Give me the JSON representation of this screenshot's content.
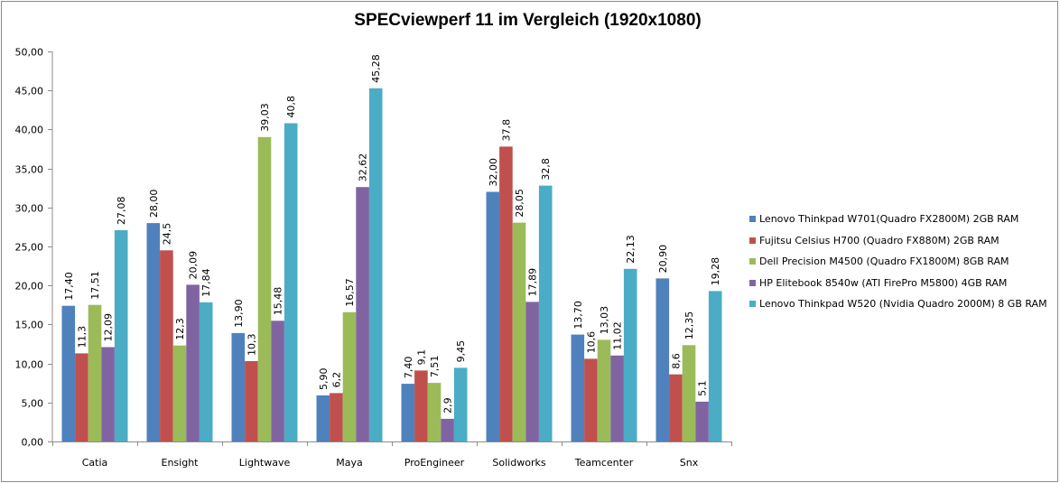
{
  "chart_data": {
    "type": "bar",
    "title": "SPECviewperf 11 im Vergleich (1920x1080)",
    "xlabel": "",
    "ylabel": "",
    "ylim": [
      0,
      50
    ],
    "yticks": [
      "0,00",
      "5,00",
      "10,00",
      "15,00",
      "20,00",
      "25,00",
      "30,00",
      "35,00",
      "40,00",
      "45,00",
      "50,00"
    ],
    "ytick_values": [
      0,
      5,
      10,
      15,
      20,
      25,
      30,
      35,
      40,
      45,
      50
    ],
    "grid": false,
    "legend_position": "right",
    "categories": [
      "Catia",
      "Ensight",
      "Lightwave",
      "Maya",
      "ProEngineer",
      "Solidworks",
      "Teamcenter",
      "Snx"
    ],
    "series": [
      {
        "name": "Lenovo Thinkpad W701(Quadro FX2800M) 2GB RAM",
        "color": "#4f81bd",
        "values": [
          17.4,
          28.0,
          13.9,
          5.9,
          7.4,
          32.0,
          13.7,
          20.9
        ],
        "labels": [
          "17,40",
          "28,00",
          "13,90",
          "5,90",
          "7,40",
          "32,00",
          "13,70",
          "20,90"
        ]
      },
      {
        "name": "Fujitsu Celsius H700 (Quadro FX880M) 2GB RAM",
        "color": "#c0504d",
        "values": [
          11.3,
          24.5,
          10.3,
          6.2,
          9.1,
          37.8,
          10.6,
          8.6
        ],
        "labels": [
          "11,3",
          "24,5",
          "10,3",
          "6,2",
          "9,1",
          "37,8",
          "10,6",
          "8,6"
        ]
      },
      {
        "name": "Dell Precision M4500 (Quadro FX1800M) 8GB RAM",
        "color": "#9bbb59",
        "values": [
          17.51,
          12.3,
          39.03,
          16.57,
          7.51,
          28.05,
          13.03,
          12.35
        ],
        "labels": [
          "17,51",
          "12,3",
          "39,03",
          "16,57",
          "7,51",
          "28,05",
          "13,03",
          "12,35"
        ]
      },
      {
        "name": "HP Elitebook 8540w (ATI FirePro M5800) 4GB RAM",
        "color": "#8064a2",
        "values": [
          12.09,
          20.09,
          15.48,
          32.62,
          2.9,
          17.89,
          11.02,
          5.1
        ],
        "labels": [
          "12,09",
          "20,09",
          "15,48",
          "32,62",
          "2,9",
          "17,89",
          "11,02",
          "5,1"
        ]
      },
      {
        "name": "Lenovo Thinkpad W520 (Nvidia Quadro 2000M) 8 GB RAM",
        "color": "#4bacc6",
        "values": [
          27.08,
          17.84,
          40.8,
          45.28,
          9.45,
          32.8,
          22.13,
          19.28
        ],
        "labels": [
          "27,08",
          "17,84",
          "40,8",
          "45,28",
          "9,45",
          "32,8",
          "22,13",
          "19,28"
        ]
      }
    ]
  }
}
